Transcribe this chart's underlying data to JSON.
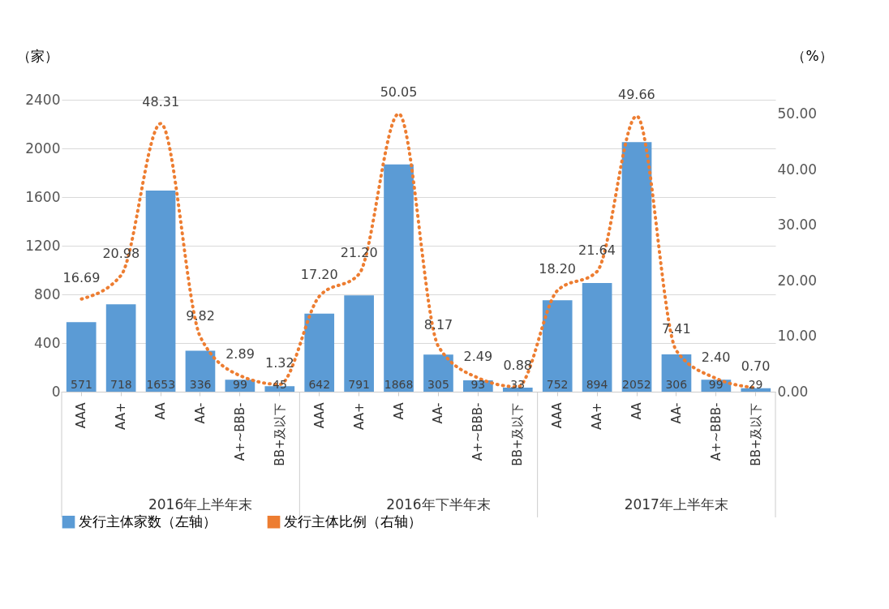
{
  "chart_data": {
    "type": "bar",
    "categories": [
      "AAA",
      "AA+",
      "AA",
      "AA-",
      "A+~BBB-",
      "BB+及以下",
      "AAA",
      "AA+",
      "AA",
      "AA-",
      "A+~BBB-",
      "BB+及以下",
      "AAA",
      "AA+",
      "AA",
      "AA-",
      "A+~BBB-",
      "BB+及以下"
    ],
    "annotations": [
      "2016年上半年末",
      "2016年下半年末",
      "2017年上半年末"
    ],
    "ylabel": "（家）",
    "y2label": "（%）",
    "series": [
      {
        "name": "发行主体家数（左轴）",
        "color": "#5b9bd5",
        "values": [
          571,
          718,
          1653,
          336,
          99,
          45,
          642,
          791,
          1868,
          305,
          93,
          33,
          752,
          894,
          2052,
          306,
          99,
          29
        ]
      },
      {
        "name": "发行主体比例（右轴）",
        "type": "line",
        "axis": "y2",
        "color": "#ed7d31",
        "line_style": "dotted",
        "values": [
          16.69,
          20.98,
          48.31,
          9.82,
          2.89,
          1.32,
          17.2,
          21.2,
          50.05,
          8.17,
          2.49,
          0.88,
          18.2,
          21.64,
          49.66,
          7.41,
          2.4,
          0.7
        ],
        "value_labels": [
          "16.69",
          "20.98",
          "48.31",
          "9.82",
          "2.89",
          "1.32",
          "17.20",
          "21.20",
          "50.05",
          "8.17",
          "2.49",
          "0.88",
          "18.20",
          "21.64",
          "49.66",
          "7.41",
          "2.40",
          "0.70"
        ]
      }
    ],
    "ylim": [
      0,
      2400
    ],
    "yticks": [
      0,
      400,
      800,
      1200,
      1600,
      2000,
      2400
    ],
    "y2lim": [
      0,
      52.6
    ],
    "y2ticks": [
      {
        "value": 0,
        "label": "0.00"
      },
      {
        "value": 10,
        "label": "10.00"
      },
      {
        "value": 20,
        "label": "20.00"
      },
      {
        "value": 30,
        "label": "30.00"
      },
      {
        "value": 40,
        "label": "40.00"
      },
      {
        "value": 50,
        "label": "50.00"
      }
    ],
    "grid": "y",
    "legend": "bottom",
    "data_labels": true
  }
}
